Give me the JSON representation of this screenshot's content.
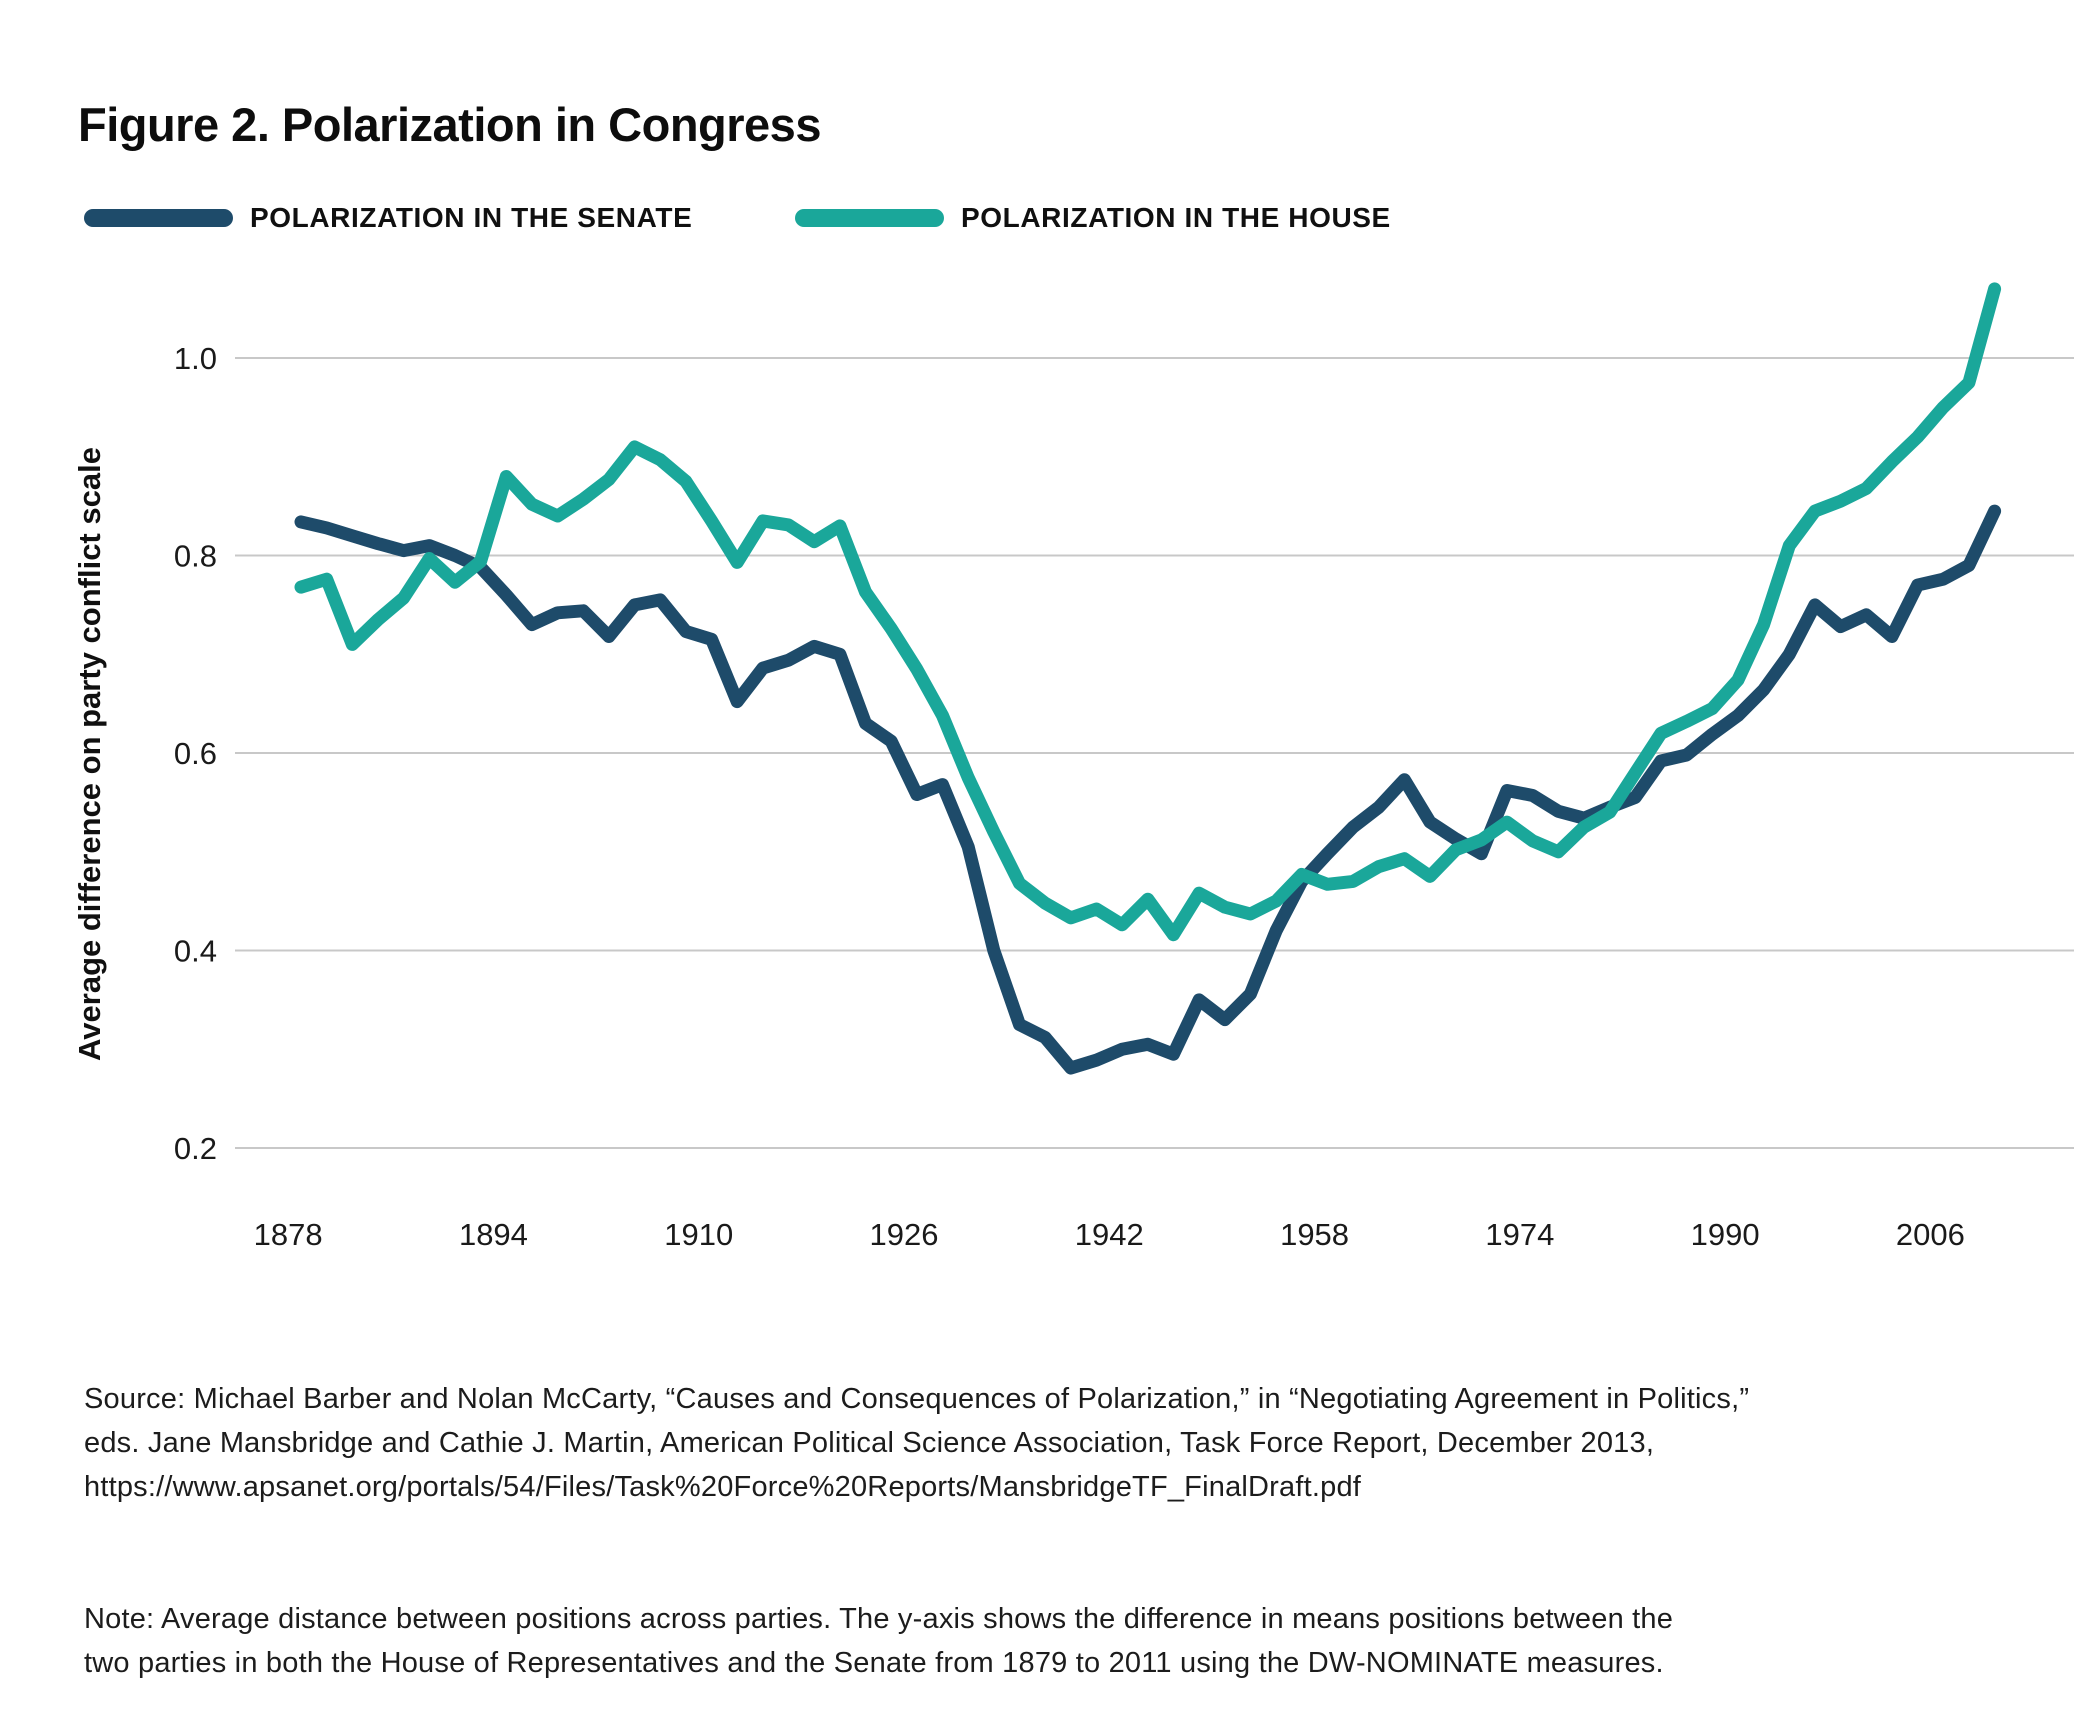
{
  "title": "Figure 2. Polarization in Congress",
  "legend": {
    "senate": {
      "label": "POLARIZATION IN THE SENATE",
      "color": "#1e4b6a"
    },
    "house": {
      "label": "POLARIZATION IN THE HOUSE",
      "color": "#1aa79a"
    }
  },
  "chart_data": {
    "type": "line",
    "title": "Figure 2. Polarization in Congress",
    "xlabel": "",
    "ylabel": "Average difference on party conflict scale",
    "x_start": 1879,
    "x_step": 2,
    "x_end": 2011,
    "ylim": [
      0.13,
      1.12
    ],
    "grid": true,
    "legend_position": "top-left",
    "grid_color": "#c8c8c8",
    "axis_text_color": "#1a1a1a",
    "yticks": [
      {
        "label": "1.0",
        "value": 1.0
      },
      {
        "label": "0.8",
        "value": 0.8
      },
      {
        "label": "0.6",
        "value": 0.6
      },
      {
        "label": "0.4",
        "value": 0.4
      },
      {
        "label": "0.2",
        "value": 0.2
      }
    ],
    "xticks": [
      {
        "label": "1878",
        "value": 1878
      },
      {
        "label": "1894",
        "value": 1894
      },
      {
        "label": "1910",
        "value": 1910
      },
      {
        "label": "1926",
        "value": 1926
      },
      {
        "label": "1942",
        "value": 1942
      },
      {
        "label": "1958",
        "value": 1958
      },
      {
        "label": "1974",
        "value": 1974
      },
      {
        "label": "1990",
        "value": 1990
      },
      {
        "label": "2006",
        "value": 2006
      }
    ],
    "series": [
      {
        "name": "POLARIZATION IN THE SENATE",
        "color": "#1e4b6a",
        "values": [
          0.834,
          0.828,
          0.82,
          0.812,
          0.805,
          0.81,
          0.8,
          0.788,
          0.76,
          0.73,
          0.742,
          0.744,
          0.718,
          0.75,
          0.755,
          0.723,
          0.715,
          0.652,
          0.686,
          0.694,
          0.708,
          0.7,
          0.63,
          0.612,
          0.558,
          0.568,
          0.505,
          0.4,
          0.325,
          0.312,
          0.281,
          0.289,
          0.3,
          0.305,
          0.295,
          0.35,
          0.33,
          0.356,
          0.42,
          0.47,
          0.498,
          0.525,
          0.545,
          0.573,
          0.53,
          0.513,
          0.498,
          0.562,
          0.557,
          0.541,
          0.534,
          0.545,
          0.555,
          0.592,
          0.598,
          0.619,
          0.638,
          0.664,
          0.7,
          0.75,
          0.728,
          0.74,
          0.718,
          0.77,
          0.776,
          0.79,
          0.845
        ]
      },
      {
        "name": "POLARIZATION IN THE HOUSE",
        "color": "#1aa79a",
        "values": [
          0.768,
          0.776,
          0.71,
          0.735,
          0.757,
          0.797,
          0.773,
          0.794,
          0.88,
          0.852,
          0.84,
          0.857,
          0.877,
          0.91,
          0.897,
          0.875,
          0.835,
          0.793,
          0.835,
          0.831,
          0.814,
          0.83,
          0.763,
          0.726,
          0.685,
          0.638,
          0.575,
          0.52,
          0.468,
          0.448,
          0.433,
          0.442,
          0.426,
          0.452,
          0.416,
          0.458,
          0.444,
          0.437,
          0.45,
          0.477,
          0.467,
          0.47,
          0.485,
          0.493,
          0.475,
          0.502,
          0.512,
          0.53,
          0.511,
          0.5,
          0.525,
          0.54,
          0.58,
          0.62,
          0.632,
          0.645,
          0.674,
          0.73,
          0.81,
          0.845,
          0.855,
          0.868,
          0.895,
          0.92,
          0.95,
          0.975,
          1.07
        ]
      }
    ]
  },
  "source": {
    "lines": [
      "Source: Michael Barber and Nolan McCarty, “Causes and Consequences of Polarization,” in “Negotiating Agreement in Politics,”",
      "eds. Jane Mansbridge and Cathie J. Martin, American Political Science Association, Task Force Report, December 2013,",
      "https://www.apsanet.org/portals/54/Files/Task%20Force%20Reports/MansbridgeTF_FinalDraft.pdf"
    ]
  },
  "note": {
    "lines": [
      "Note: Average distance between positions across parties. The y-axis shows the difference in means positions between the",
      "two parties in both the House of Representatives and the Senate from 1879 to 2011 using the DW-NOMINATE measures."
    ]
  }
}
